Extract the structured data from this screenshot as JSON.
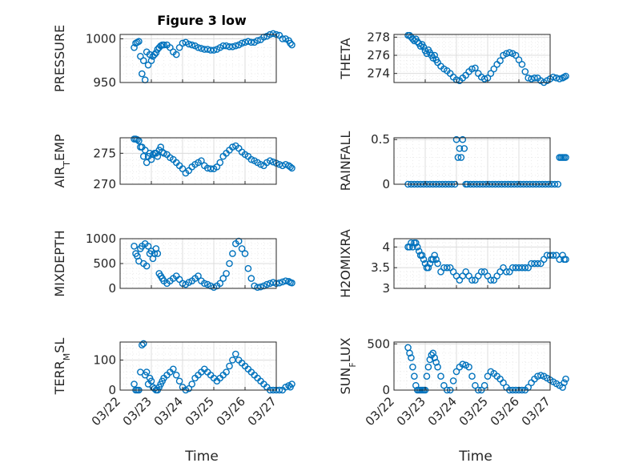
{
  "figure": {
    "title": "Figure 3 low",
    "x_axis_title": "Time",
    "x_tick_labels": [
      "03/22",
      "03/23",
      "03/24",
      "03/25",
      "03/26",
      "03/27"
    ]
  },
  "chart_data": [
    {
      "type": "scatter",
      "ylabel": "PRESSURE",
      "ylabel_sub": null,
      "ylim": [
        950,
        1005
      ],
      "yticks": [
        950,
        1000
      ],
      "ytick_labels": [
        "950",
        "1000"
      ],
      "grid": true,
      "color": "#0072bd",
      "x": [
        0.45,
        0.5,
        0.55,
        0.6,
        0.65,
        0.7,
        0.75,
        0.8,
        0.85,
        0.9,
        0.95,
        1.0,
        1.05,
        1.1,
        1.15,
        1.2,
        1.25,
        1.3,
        1.35,
        1.4,
        1.5,
        1.6,
        1.7,
        1.8,
        1.9,
        2.0,
        2.1,
        2.2,
        2.3,
        2.4,
        2.5,
        2.6,
        2.7,
        2.8,
        2.9,
        3.0,
        3.1,
        3.2,
        3.3,
        3.4,
        3.5,
        3.6,
        3.7,
        3.8,
        3.9,
        4.0,
        4.1,
        4.2,
        4.3,
        4.4,
        4.5,
        4.6,
        4.7,
        4.8,
        4.9,
        5.0,
        5.1,
        5.2,
        5.3,
        5.4,
        5.45,
        5.5
      ],
      "y": [
        990,
        995,
        996,
        997,
        980,
        960,
        975,
        953,
        985,
        970,
        982,
        975,
        980,
        982,
        984,
        988,
        990,
        992,
        993,
        993,
        993,
        990,
        985,
        982,
        990,
        995,
        996,
        994,
        993,
        992,
        990,
        989,
        988,
        988,
        987,
        987,
        988,
        990,
        992,
        992,
        991,
        991,
        992,
        993,
        995,
        996,
        997,
        996,
        996,
        998,
        999,
        1002,
        1003,
        1005,
        1006,
        1005,
        1004,
        1000,
        1000,
        998,
        995,
        993
      ]
    },
    {
      "type": "scatter",
      "ylabel": "THETA",
      "ylabel_sub": null,
      "ylim": [
        273,
        278.3
      ],
      "yticks": [
        274,
        276,
        278
      ],
      "ytick_labels": [
        "274",
        "276",
        "278"
      ],
      "grid": true,
      "color": "#0072bd",
      "x": [
        0.45,
        0.5,
        0.55,
        0.6,
        0.65,
        0.7,
        0.75,
        0.8,
        0.85,
        0.9,
        0.95,
        1.0,
        1.05,
        1.1,
        1.15,
        1.2,
        1.25,
        1.3,
        1.35,
        1.4,
        1.5,
        1.6,
        1.7,
        1.8,
        1.9,
        2.0,
        2.1,
        2.2,
        2.3,
        2.4,
        2.5,
        2.6,
        2.7,
        2.8,
        2.9,
        3.0,
        3.1,
        3.2,
        3.3,
        3.4,
        3.5,
        3.6,
        3.7,
        3.8,
        3.9,
        4.0,
        4.1,
        4.2,
        4.3,
        4.4,
        4.5,
        4.6,
        4.7,
        4.8,
        4.9,
        5.0,
        5.1,
        5.2,
        5.3,
        5.4,
        5.45,
        5.5
      ],
      "y": [
        278.2,
        278.2,
        278.0,
        277.8,
        277.6,
        277.8,
        277.5,
        277.3,
        277.0,
        277.2,
        276.9,
        276.5,
        276.2,
        276.6,
        276.3,
        276.0,
        275.7,
        276.0,
        275.5,
        275.2,
        274.8,
        274.5,
        274.3,
        274.0,
        273.6,
        273.3,
        273.2,
        273.5,
        273.8,
        274.2,
        274.5,
        274.6,
        274.0,
        273.6,
        273.4,
        273.5,
        274.0,
        274.5,
        275.0,
        275.4,
        276.0,
        276.2,
        276.3,
        276.2,
        276.0,
        275.5,
        275.0,
        274.2,
        273.5,
        273.4,
        273.5,
        273.5,
        273.2,
        273.0,
        273.2,
        273.4,
        273.6,
        273.5,
        273.4,
        273.5,
        273.6,
        273.7
      ]
    },
    {
      "type": "scatter",
      "ylabel": "AIR",
      "ylabel_sub": "T",
      "ylabel_rest": "EMP",
      "ylim": [
        270,
        277.5
      ],
      "yticks": [
        270,
        275
      ],
      "ytick_labels": [
        "270",
        "275"
      ],
      "grid": true,
      "color": "#0072bd",
      "x": [
        0.45,
        0.5,
        0.55,
        0.6,
        0.65,
        0.7,
        0.75,
        0.8,
        0.85,
        0.9,
        0.95,
        1.0,
        1.05,
        1.1,
        1.15,
        1.2,
        1.25,
        1.3,
        1.35,
        1.4,
        1.5,
        1.6,
        1.7,
        1.8,
        1.9,
        2.0,
        2.1,
        2.2,
        2.3,
        2.4,
        2.5,
        2.6,
        2.7,
        2.8,
        2.9,
        3.0,
        3.1,
        3.2,
        3.3,
        3.4,
        3.5,
        3.6,
        3.7,
        3.8,
        3.9,
        4.0,
        4.1,
        4.2,
        4.3,
        4.4,
        4.5,
        4.6,
        4.7,
        4.8,
        4.9,
        5.0,
        5.1,
        5.2,
        5.3,
        5.4,
        5.45,
        5.5
      ],
      "y": [
        277.3,
        277.3,
        277.2,
        277.0,
        276.0,
        276.0,
        274.5,
        275.5,
        273.5,
        274.5,
        275.0,
        274.0,
        274.8,
        275.0,
        275.0,
        274.5,
        275.5,
        276.0,
        275.2,
        275.0,
        274.8,
        274.3,
        274.0,
        273.5,
        273.0,
        272.5,
        271.8,
        272.2,
        272.8,
        273.2,
        273.5,
        273.8,
        273.0,
        272.6,
        272.5,
        272.5,
        272.8,
        273.5,
        274.5,
        275.0,
        275.5,
        276.0,
        276.2,
        275.8,
        275.2,
        274.8,
        274.5,
        274.0,
        273.8,
        273.5,
        273.2,
        273.0,
        273.5,
        273.8,
        273.6,
        273.4,
        273.2,
        273.0,
        273.2,
        273.0,
        272.8,
        272.6
      ]
    },
    {
      "type": "scatter",
      "ylabel": "RAINFALL",
      "ylabel_sub": null,
      "ylim": [
        0,
        0.52
      ],
      "yticks": [
        0,
        0.5
      ],
      "ytick_labels": [
        "0",
        "0.5"
      ],
      "grid": true,
      "color": "#0072bd",
      "x": [
        0.45,
        0.55,
        0.65,
        0.75,
        0.85,
        0.95,
        1.05,
        1.15,
        1.25,
        1.35,
        1.45,
        1.55,
        1.65,
        1.75,
        1.85,
        1.95,
        2.0,
        2.05,
        2.1,
        2.15,
        2.2,
        2.25,
        2.3,
        2.35,
        2.45,
        2.55,
        2.65,
        2.75,
        2.85,
        2.95,
        3.05,
        3.15,
        3.25,
        3.35,
        3.45,
        3.55,
        3.65,
        3.75,
        3.85,
        3.95,
        4.05,
        4.15,
        4.25,
        4.35,
        4.45,
        4.55,
        4.65,
        4.75,
        4.85,
        4.95,
        5.05,
        5.15,
        5.25,
        5.3,
        5.35,
        5.4,
        5.45,
        5.5
      ],
      "y": [
        0,
        0,
        0,
        0,
        0,
        0,
        0,
        0,
        0,
        0,
        0,
        0,
        0,
        0,
        0,
        0,
        0.5,
        0.3,
        0.4,
        0.3,
        0.5,
        0.4,
        0,
        0,
        0,
        0,
        0,
        0,
        0,
        0,
        0,
        0,
        0,
        0,
        0,
        0,
        0,
        0,
        0,
        0,
        0,
        0,
        0,
        0,
        0,
        0,
        0,
        0,
        0,
        0,
        0,
        0,
        0,
        0.3,
        0.3,
        0.3,
        0.3,
        0.3
      ]
    },
    {
      "type": "scatter",
      "ylabel": "MIXDEPTH",
      "ylabel_sub": null,
      "ylim": [
        0,
        1000
      ],
      "yticks": [
        0,
        500,
        1000
      ],
      "ytick_labels": [
        "0",
        "500",
        "1000"
      ],
      "grid": true,
      "color": "#0072bd",
      "x": [
        0.45,
        0.5,
        0.55,
        0.6,
        0.65,
        0.7,
        0.75,
        0.8,
        0.85,
        0.9,
        0.95,
        1.0,
        1.05,
        1.1,
        1.15,
        1.2,
        1.25,
        1.3,
        1.35,
        1.4,
        1.5,
        1.6,
        1.7,
        1.8,
        1.9,
        2.0,
        2.1,
        2.2,
        2.3,
        2.4,
        2.5,
        2.6,
        2.7,
        2.8,
        2.9,
        3.0,
        3.1,
        3.2,
        3.3,
        3.4,
        3.5,
        3.6,
        3.7,
        3.8,
        3.9,
        4.0,
        4.1,
        4.2,
        4.3,
        4.4,
        4.5,
        4.6,
        4.7,
        4.8,
        4.9,
        5.0,
        5.1,
        5.2,
        5.3,
        5.4,
        5.45,
        5.5
      ],
      "y": [
        850,
        700,
        650,
        550,
        800,
        850,
        500,
        900,
        450,
        850,
        700,
        750,
        600,
        700,
        800,
        700,
        300,
        250,
        200,
        150,
        100,
        150,
        200,
        250,
        180,
        100,
        80,
        120,
        150,
        200,
        250,
        150,
        100,
        80,
        50,
        20,
        50,
        100,
        200,
        300,
        500,
        700,
        900,
        950,
        800,
        700,
        400,
        200,
        50,
        20,
        30,
        50,
        80,
        100,
        120,
        100,
        110,
        130,
        150,
        140,
        120,
        110
      ]
    },
    {
      "type": "scatter",
      "ylabel": "H2OMIXRA",
      "ylabel_sub": null,
      "ylim": [
        3,
        4.2
      ],
      "yticks": [
        3,
        3.5,
        4
      ],
      "ytick_labels": [
        "3",
        "3.5",
        "4"
      ],
      "grid": true,
      "color": "#0072bd",
      "x": [
        0.45,
        0.5,
        0.55,
        0.6,
        0.65,
        0.7,
        0.75,
        0.8,
        0.85,
        0.9,
        0.95,
        1.0,
        1.05,
        1.1,
        1.15,
        1.2,
        1.25,
        1.3,
        1.35,
        1.4,
        1.5,
        1.6,
        1.7,
        1.8,
        1.9,
        2.0,
        2.1,
        2.2,
        2.3,
        2.4,
        2.5,
        2.6,
        2.7,
        2.8,
        2.9,
        3.0,
        3.1,
        3.2,
        3.3,
        3.4,
        3.5,
        3.6,
        3.7,
        3.8,
        3.9,
        4.0,
        4.1,
        4.2,
        4.3,
        4.4,
        4.5,
        4.6,
        4.7,
        4.8,
        4.9,
        5.0,
        5.1,
        5.2,
        5.3,
        5.4,
        5.45,
        5.5
      ],
      "y": [
        4.0,
        4.0,
        4.1,
        4.0,
        4.1,
        4.1,
        4.0,
        3.9,
        3.8,
        3.8,
        3.7,
        3.6,
        3.5,
        3.5,
        3.6,
        3.7,
        3.7,
        3.8,
        3.7,
        3.6,
        3.4,
        3.5,
        3.5,
        3.5,
        3.4,
        3.3,
        3.2,
        3.3,
        3.4,
        3.3,
        3.2,
        3.2,
        3.3,
        3.4,
        3.4,
        3.3,
        3.2,
        3.2,
        3.3,
        3.4,
        3.5,
        3.4,
        3.4,
        3.5,
        3.5,
        3.5,
        3.5,
        3.5,
        3.5,
        3.6,
        3.6,
        3.6,
        3.6,
        3.7,
        3.8,
        3.8,
        3.8,
        3.8,
        3.7,
        3.8,
        3.7,
        3.7
      ]
    },
    {
      "type": "scatter",
      "ylabel": "TERR",
      "ylabel_sub": "M",
      "ylabel_rest": "SL",
      "ylim": [
        0,
        160
      ],
      "yticks": [
        0,
        100
      ],
      "ytick_labels": [
        "0",
        "100"
      ],
      "grid": true,
      "color": "#0072bd",
      "x": [
        0.45,
        0.5,
        0.55,
        0.6,
        0.65,
        0.7,
        0.75,
        0.8,
        0.85,
        0.9,
        0.95,
        1.0,
        1.05,
        1.1,
        1.15,
        1.2,
        1.25,
        1.3,
        1.35,
        1.4,
        1.5,
        1.6,
        1.7,
        1.8,
        1.9,
        2.0,
        2.1,
        2.2,
        2.3,
        2.4,
        2.5,
        2.6,
        2.7,
        2.8,
        2.9,
        3.0,
        3.1,
        3.2,
        3.3,
        3.4,
        3.5,
        3.6,
        3.7,
        3.8,
        3.9,
        4.0,
        4.1,
        4.2,
        4.3,
        4.4,
        4.5,
        4.6,
        4.7,
        4.8,
        4.9,
        5.0,
        5.1,
        5.2,
        5.3,
        5.4,
        5.45,
        5.5
      ],
      "y": [
        20,
        0,
        0,
        0,
        60,
        150,
        155,
        50,
        60,
        20,
        40,
        30,
        10,
        5,
        0,
        0,
        10,
        20,
        30,
        40,
        50,
        60,
        70,
        50,
        30,
        10,
        0,
        5,
        20,
        40,
        50,
        60,
        70,
        60,
        50,
        40,
        30,
        40,
        50,
        60,
        80,
        100,
        120,
        100,
        90,
        80,
        70,
        60,
        50,
        40,
        30,
        20,
        10,
        0,
        0,
        0,
        0,
        0,
        10,
        15,
        10,
        20
      ]
    },
    {
      "type": "scatter",
      "ylabel": "SUN",
      "ylabel_sub": "F",
      "ylabel_rest": "LUX",
      "ylim": [
        0,
        520
      ],
      "yticks": [
        0,
        500
      ],
      "ytick_labels": [
        "0",
        "500"
      ],
      "grid": true,
      "color": "#0072bd",
      "x": [
        0.45,
        0.5,
        0.55,
        0.6,
        0.65,
        0.7,
        0.75,
        0.8,
        0.85,
        0.9,
        0.95,
        1.0,
        1.05,
        1.1,
        1.15,
        1.2,
        1.25,
        1.3,
        1.35,
        1.4,
        1.5,
        1.6,
        1.7,
        1.8,
        1.9,
        2.0,
        2.1,
        2.2,
        2.3,
        2.4,
        2.5,
        2.6,
        2.7,
        2.8,
        2.9,
        3.0,
        3.1,
        3.2,
        3.3,
        3.4,
        3.5,
        3.6,
        3.7,
        3.8,
        3.9,
        4.0,
        4.1,
        4.2,
        4.3,
        4.4,
        4.5,
        4.6,
        4.7,
        4.8,
        4.9,
        5.0,
        5.1,
        5.2,
        5.3,
        5.4,
        5.45,
        5.5
      ],
      "y": [
        460,
        400,
        350,
        250,
        150,
        50,
        0,
        0,
        0,
        0,
        0,
        0,
        150,
        250,
        330,
        380,
        400,
        350,
        300,
        250,
        150,
        50,
        0,
        0,
        100,
        200,
        250,
        280,
        270,
        250,
        150,
        50,
        0,
        0,
        50,
        150,
        200,
        180,
        150,
        120,
        80,
        30,
        0,
        0,
        0,
        0,
        0,
        0,
        30,
        80,
        120,
        150,
        160,
        150,
        130,
        110,
        90,
        70,
        50,
        30,
        80,
        120
      ]
    }
  ]
}
